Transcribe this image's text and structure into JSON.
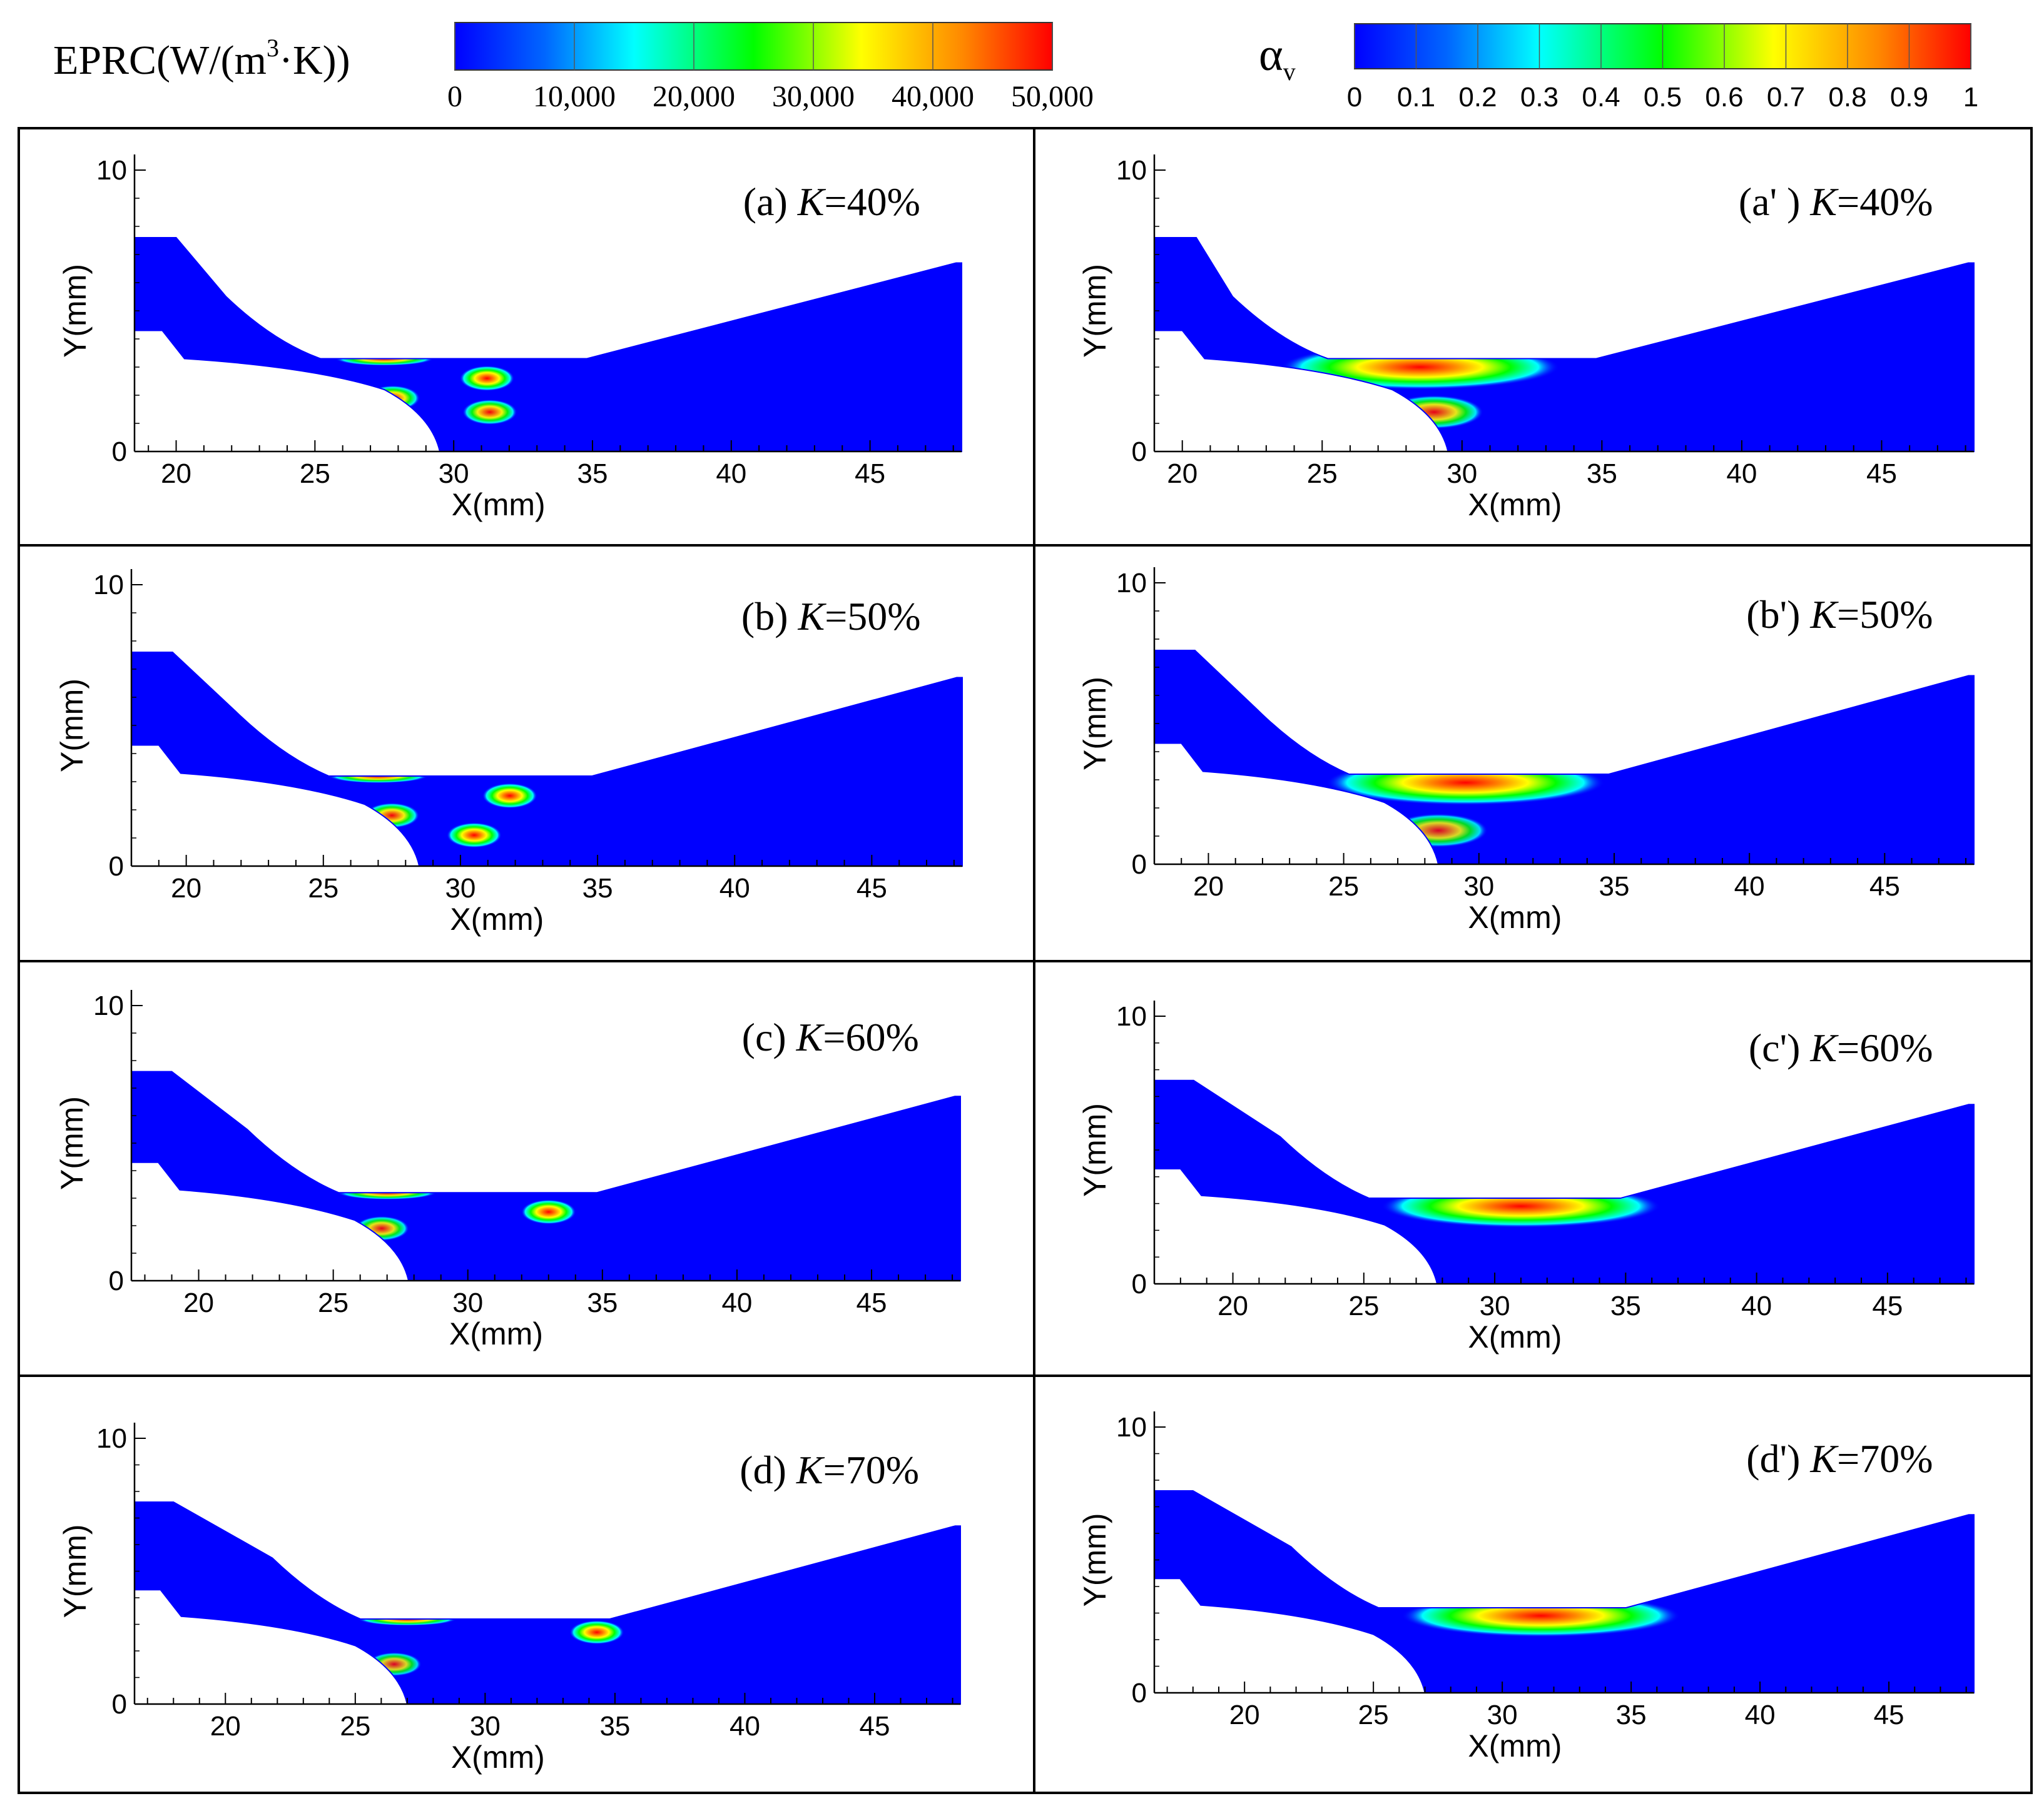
{
  "colors": {
    "blue": "#0000ff",
    "red": "#ff0000",
    "frame": "#000000",
    "background": "#ffffff"
  },
  "legend_eprc": {
    "title": "EPRC(W/(m",
    "title_sup": "3",
    "title_tail": "·K))",
    "ticks": [
      "0",
      "10,000",
      "20,000",
      "30,000",
      "40,000",
      "50,000"
    ],
    "min": 0,
    "max": 50000
  },
  "legend_alpha": {
    "symbol": "α",
    "subscript": "v",
    "ticks": [
      "0",
      "0.1",
      "0.2",
      "0.3",
      "0.4",
      "0.5",
      "0.6",
      "0.7",
      "0.8",
      "0.9",
      "1"
    ],
    "min": 0,
    "max": 1
  },
  "chart_data": [
    {
      "id": "a",
      "type": "heatmap",
      "variable": "EPRC",
      "label_prefix": "(a) ",
      "k_label": "K",
      "k_value": "=40%",
      "xlabel": "X(mm)",
      "ylabel": "Y(mm)",
      "xticks": [
        "20",
        "25",
        "30",
        "35",
        "40",
        "45"
      ],
      "yticks": [
        "0",
        "10"
      ],
      "xlim": [
        18.5,
        48.3
      ],
      "ylim": [
        0,
        10
      ],
      "throat_y": 3.3,
      "tip_x": 29.5,
      "hotspots": [
        {
          "x": 27.5,
          "y": 3.3,
          "v": 0.95
        },
        {
          "x": 27.8,
          "y": 1.9,
          "v": 0.95
        },
        {
          "x": 31.2,
          "y": 2.6,
          "v": 1.0
        },
        {
          "x": 31.3,
          "y": 1.4,
          "v": 0.95
        }
      ]
    },
    {
      "id": "a2",
      "type": "heatmap",
      "variable": "alpha_v",
      "label_prefix": "(a' ) ",
      "k_label": "K",
      "k_value": "=40%",
      "xlabel": "X(mm)",
      "ylabel": "Y(mm)",
      "xticks": [
        "20",
        "25",
        "30",
        "35",
        "40",
        "45"
      ],
      "yticks": [
        "0",
        "10"
      ],
      "xlim": [
        19.0,
        48.3
      ],
      "ylim": [
        0,
        10
      ],
      "throat_y": 3.3,
      "tip_x": 29.5,
      "hotspots": [
        {
          "x": 28.5,
          "y": 3.0,
          "v": 1.0
        },
        {
          "x": 29.0,
          "y": 1.4,
          "v": 0.9
        }
      ]
    },
    {
      "id": "b",
      "type": "heatmap",
      "variable": "EPRC",
      "label_prefix": "(b) ",
      "k_label": "K",
      "k_value": "=50%",
      "xlabel": "X(mm)",
      "ylabel": "Y(mm)",
      "xticks": [
        "20",
        "25",
        "30",
        "35",
        "40",
        "45"
      ],
      "yticks": [
        "0",
        "10"
      ],
      "xlim": [
        18.0,
        48.3
      ],
      "ylim": [
        0,
        10
      ],
      "throat_y": 3.2,
      "tip_x": 28.5,
      "hotspots": [
        {
          "x": 27.0,
          "y": 3.2,
          "v": 0.95
        },
        {
          "x": 27.5,
          "y": 1.8,
          "v": 0.95
        },
        {
          "x": 31.8,
          "y": 2.5,
          "v": 1.0
        },
        {
          "x": 30.5,
          "y": 1.1,
          "v": 1.0
        }
      ]
    },
    {
      "id": "b2",
      "type": "heatmap",
      "variable": "alpha_v",
      "label_prefix": "(b') ",
      "k_label": "K",
      "k_value": "=50%",
      "xlabel": "X(mm)",
      "ylabel": "Y(mm)",
      "xticks": [
        "20",
        "25",
        "30",
        "35",
        "40",
        "45"
      ],
      "yticks": [
        "0",
        "10"
      ],
      "xlim": [
        18.0,
        48.3
      ],
      "ylim": [
        0,
        10
      ],
      "throat_y": 3.2,
      "tip_x": 28.5,
      "hotspots": [
        {
          "x": 29.5,
          "y": 2.9,
          "v": 1.0
        },
        {
          "x": 28.5,
          "y": 1.2,
          "v": 0.85
        }
      ]
    },
    {
      "id": "c",
      "type": "heatmap",
      "variable": "EPRC",
      "label_prefix": "(c) ",
      "k_label": "K",
      "k_value": "=60%",
      "xlabel": "X(mm)",
      "ylabel": "Y(mm)",
      "xticks": [
        "20",
        "25",
        "30",
        "35",
        "40",
        "45"
      ],
      "yticks": [
        "0",
        "10"
      ],
      "xlim": [
        17.5,
        48.3
      ],
      "ylim": [
        0,
        10
      ],
      "throat_y": 3.2,
      "tip_x": 27.8,
      "hotspots": [
        {
          "x": 27.0,
          "y": 3.2,
          "v": 0.95
        },
        {
          "x": 26.8,
          "y": 1.9,
          "v": 0.9
        },
        {
          "x": 33.0,
          "y": 2.5,
          "v": 1.0
        }
      ]
    },
    {
      "id": "c2",
      "type": "heatmap",
      "variable": "alpha_v",
      "label_prefix": "(c') ",
      "k_label": "K",
      "k_value": "=60%",
      "xlabel": "X(mm)",
      "ylabel": "Y(mm)",
      "xticks": [
        "20",
        "25",
        "30",
        "35",
        "40",
        "45"
      ],
      "yticks": [
        "0",
        "10"
      ],
      "xlim": [
        17.0,
        48.3
      ],
      "ylim": [
        0,
        10
      ],
      "throat_y": 3.2,
      "tip_x": 27.8,
      "hotspots": [
        {
          "x": 31.0,
          "y": 2.9,
          "v": 1.0
        }
      ]
    },
    {
      "id": "d",
      "type": "heatmap",
      "variable": "EPRC",
      "label_prefix": "(d) ",
      "k_label": "K",
      "k_value": "=70%",
      "xlabel": "X(mm)",
      "ylabel": "Y(mm)",
      "xticks": [
        "20",
        "25",
        "30",
        "35",
        "40",
        "45"
      ],
      "yticks": [
        "0",
        "10"
      ],
      "xlim": [
        16.5,
        48.3
      ],
      "ylim": [
        0,
        10
      ],
      "throat_y": 3.2,
      "tip_x": 27.0,
      "hotspots": [
        {
          "x": 27.0,
          "y": 3.2,
          "v": 0.95
        },
        {
          "x": 26.5,
          "y": 1.5,
          "v": 0.85
        },
        {
          "x": 34.3,
          "y": 2.7,
          "v": 1.0
        }
      ]
    },
    {
      "id": "d2",
      "type": "heatmap",
      "variable": "alpha_v",
      "label_prefix": "(d') ",
      "k_label": "K",
      "k_value": "=70%",
      "xlabel": "X(mm)",
      "ylabel": "Y(mm)",
      "xticks": [
        "20",
        "25",
        "30",
        "35",
        "40",
        "45"
      ],
      "yticks": [
        "0",
        "10"
      ],
      "xlim": [
        16.5,
        48.3
      ],
      "ylim": [
        0,
        10
      ],
      "throat_y": 3.2,
      "tip_x": 27.0,
      "hotspots": [
        {
          "x": 31.5,
          "y": 2.9,
          "v": 1.0
        }
      ]
    }
  ]
}
